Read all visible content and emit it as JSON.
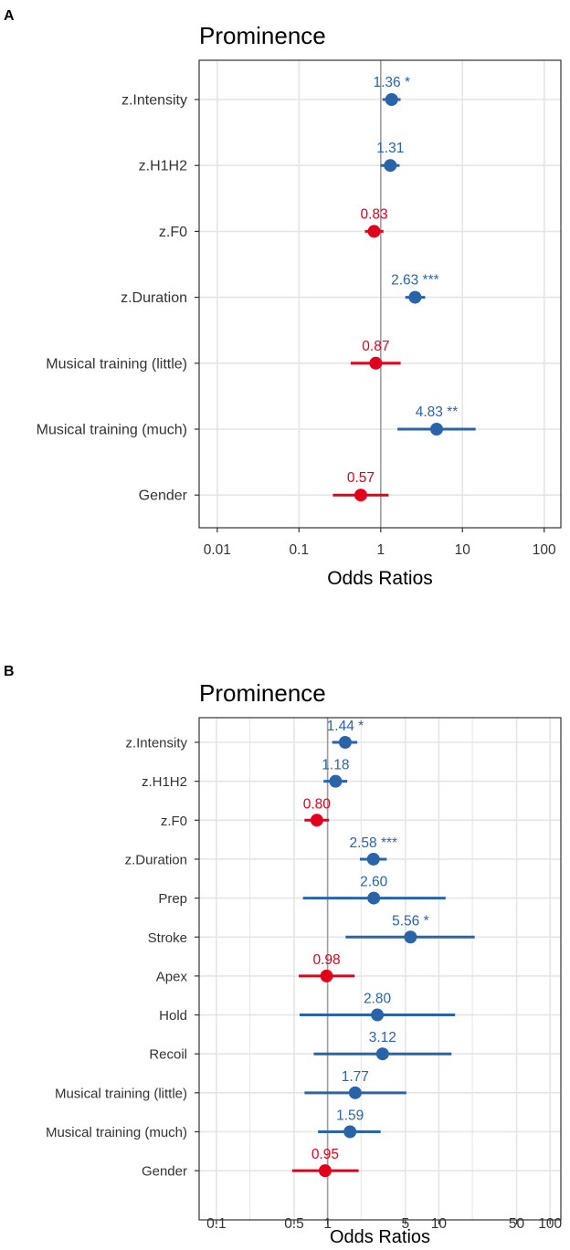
{
  "colors": {
    "positive": "#2a64a8",
    "negative": "#e3001b",
    "grid": "#e5e5e5",
    "ref_line": "#9e9e9e",
    "border": "#333333",
    "text": "#333333"
  },
  "chart_data": [
    {
      "panel_label": "A",
      "type": "forest",
      "title": "Prominence",
      "xlabel": "Odds Ratios",
      "xscale": "log10",
      "xlim": [
        0.006,
        160
      ],
      "xticks": [
        0.01,
        0.1,
        1,
        10,
        100
      ],
      "xtick_labels": [
        "0.01",
        "0.1",
        "1",
        "10",
        "100"
      ],
      "reference": 1,
      "rows": [
        {
          "label": "z.Intensity",
          "value": 1.36,
          "lo": 1.05,
          "hi": 1.75,
          "value_label": "1.36 *",
          "direction": "positive"
        },
        {
          "label": "z.H1H2",
          "value": 1.31,
          "lo": 1.0,
          "hi": 1.7,
          "value_label": "1.31",
          "direction": "positive"
        },
        {
          "label": "z.F0",
          "value": 0.83,
          "lo": 0.64,
          "hi": 1.08,
          "value_label": "0.83",
          "direction": "negative"
        },
        {
          "label": "z.Duration",
          "value": 2.63,
          "lo": 2.0,
          "hi": 3.5,
          "value_label": "2.63 ***",
          "direction": "positive"
        },
        {
          "label": "Musical training (little)",
          "value": 0.87,
          "lo": 0.43,
          "hi": 1.75,
          "value_label": "0.87",
          "direction": "negative"
        },
        {
          "label": "Musical training (much)",
          "value": 4.83,
          "lo": 1.6,
          "hi": 14.5,
          "value_label": "4.83 **",
          "direction": "positive"
        },
        {
          "label": "Gender",
          "value": 0.57,
          "lo": 0.26,
          "hi": 1.25,
          "value_label": "0.57",
          "direction": "negative"
        }
      ]
    },
    {
      "panel_label": "B",
      "type": "forest",
      "title": "Prominence",
      "xlabel": "Odds Ratios",
      "xscale": "log10",
      "xlim": [
        0.07,
        125
      ],
      "xticks": [
        0.1,
        0.5,
        1,
        5,
        10,
        50,
        100
      ],
      "xtick_labels": [
        "0.1",
        "0.5",
        "1",
        "5",
        "10",
        "50",
        "100"
      ],
      "minor_gridlines": [
        0.2,
        2,
        20
      ],
      "reference": 1,
      "rows": [
        {
          "label": "z.Intensity",
          "value": 1.44,
          "lo": 1.1,
          "hi": 1.85,
          "value_label": "1.44 *",
          "direction": "positive"
        },
        {
          "label": "z.H1H2",
          "value": 1.18,
          "lo": 0.92,
          "hi": 1.5,
          "value_label": "1.18",
          "direction": "positive"
        },
        {
          "label": "z.F0",
          "value": 0.8,
          "lo": 0.62,
          "hi": 1.03,
          "value_label": "0.80",
          "direction": "negative"
        },
        {
          "label": "z.Duration",
          "value": 2.58,
          "lo": 1.95,
          "hi": 3.4,
          "value_label": "2.58 ***",
          "direction": "positive"
        },
        {
          "label": "Prep",
          "value": 2.6,
          "lo": 0.6,
          "hi": 11.5,
          "value_label": "2.60",
          "direction": "positive"
        },
        {
          "label": "Stroke",
          "value": 5.56,
          "lo": 1.45,
          "hi": 21,
          "value_label": "5.56 *",
          "direction": "positive"
        },
        {
          "label": "Apex",
          "value": 0.98,
          "lo": 0.55,
          "hi": 1.75,
          "value_label": "0.98",
          "direction": "negative"
        },
        {
          "label": "Hold",
          "value": 2.8,
          "lo": 0.56,
          "hi": 14,
          "value_label": "2.80",
          "direction": "positive"
        },
        {
          "label": "Recoil",
          "value": 3.12,
          "lo": 0.75,
          "hi": 13,
          "value_label": "3.12",
          "direction": "positive"
        },
        {
          "label": "Musical training (little)",
          "value": 1.77,
          "lo": 0.62,
          "hi": 5.1,
          "value_label": "1.77",
          "direction": "positive"
        },
        {
          "label": "Musical training (much)",
          "value": 1.59,
          "lo": 0.82,
          "hi": 3.0,
          "value_label": "1.59",
          "direction": "positive"
        },
        {
          "label": "Gender",
          "value": 0.95,
          "lo": 0.48,
          "hi": 1.9,
          "value_label": "0.95",
          "direction": "negative"
        }
      ]
    }
  ]
}
